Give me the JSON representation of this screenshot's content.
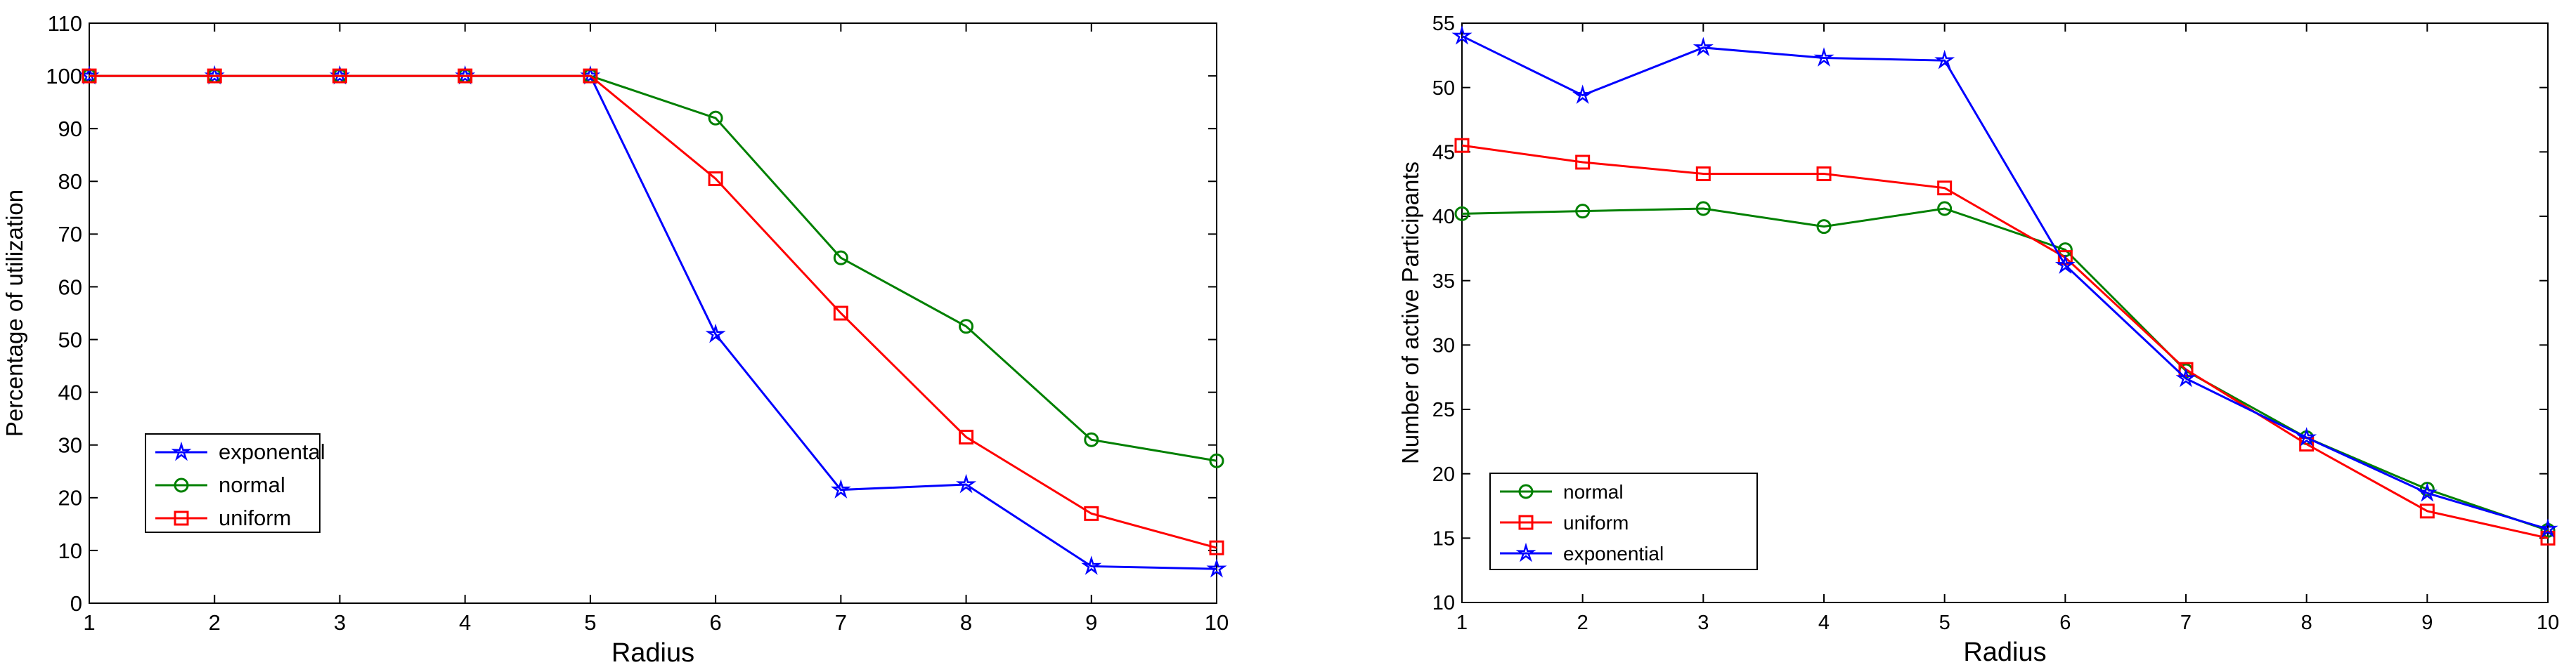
{
  "chart_data": [
    {
      "type": "line",
      "title": "",
      "xlabel": "Radius",
      "ylabel": "Percentage of utilization",
      "x": [
        1,
        2,
        3,
        4,
        5,
        6,
        7,
        8,
        9,
        10
      ],
      "xlim": [
        1,
        10
      ],
      "ylim": [
        0,
        110
      ],
      "xticks": [
        "1",
        "2",
        "3",
        "4",
        "5",
        "6",
        "7",
        "8",
        "9",
        "10"
      ],
      "yticks": [
        "0",
        "10",
        "20",
        "30",
        "40",
        "50",
        "60",
        "70",
        "80",
        "90",
        "100",
        "110"
      ],
      "grid": false,
      "legend_position": "bottom-left",
      "series": [
        {
          "name": "exponental",
          "color": "#0000ff",
          "marker": "star",
          "values": [
            100,
            100,
            100,
            100,
            100,
            51,
            21.5,
            22.5,
            7,
            6.5
          ]
        },
        {
          "name": "normal",
          "color": "#008000",
          "marker": "circle",
          "values": [
            100,
            100,
            100,
            100,
            100,
            92,
            65.5,
            52.5,
            31,
            27
          ]
        },
        {
          "name": "uniform",
          "color": "#ff0000",
          "marker": "square",
          "values": [
            100,
            100,
            100,
            100,
            100,
            80.5,
            55,
            31.5,
            17,
            10.5
          ]
        }
      ]
    },
    {
      "type": "line",
      "title": "",
      "xlabel": "Radius",
      "ylabel": "Number of active Participants",
      "x": [
        1,
        2,
        3,
        4,
        5,
        6,
        7,
        8,
        9,
        10
      ],
      "xlim": [
        1,
        10
      ],
      "ylim": [
        10,
        55
      ],
      "xticks": [
        "1",
        "2",
        "3",
        "4",
        "5",
        "6",
        "7",
        "8",
        "9",
        "10"
      ],
      "yticks": [
        "10",
        "15",
        "20",
        "25",
        "30",
        "35",
        "40",
        "45",
        "50",
        "55"
      ],
      "grid": false,
      "legend_position": "bottom-left",
      "series": [
        {
          "name": "normal",
          "color": "#008000",
          "marker": "circle",
          "values": [
            40.2,
            40.4,
            40.6,
            39.2,
            40.6,
            37.4,
            28,
            22.8,
            18.8,
            15.6
          ]
        },
        {
          "name": "uniform",
          "color": "#ff0000",
          "marker": "square",
          "values": [
            45.5,
            44.2,
            43.3,
            43.3,
            42.2,
            36.8,
            28.1,
            22.3,
            17.1,
            15
          ]
        },
        {
          "name": "exponential",
          "color": "#0000ff",
          "marker": "star",
          "values": [
            54,
            49.4,
            53.1,
            52.3,
            52.1,
            36.2,
            27.4,
            22.8,
            18.5,
            15.7
          ]
        }
      ]
    }
  ]
}
